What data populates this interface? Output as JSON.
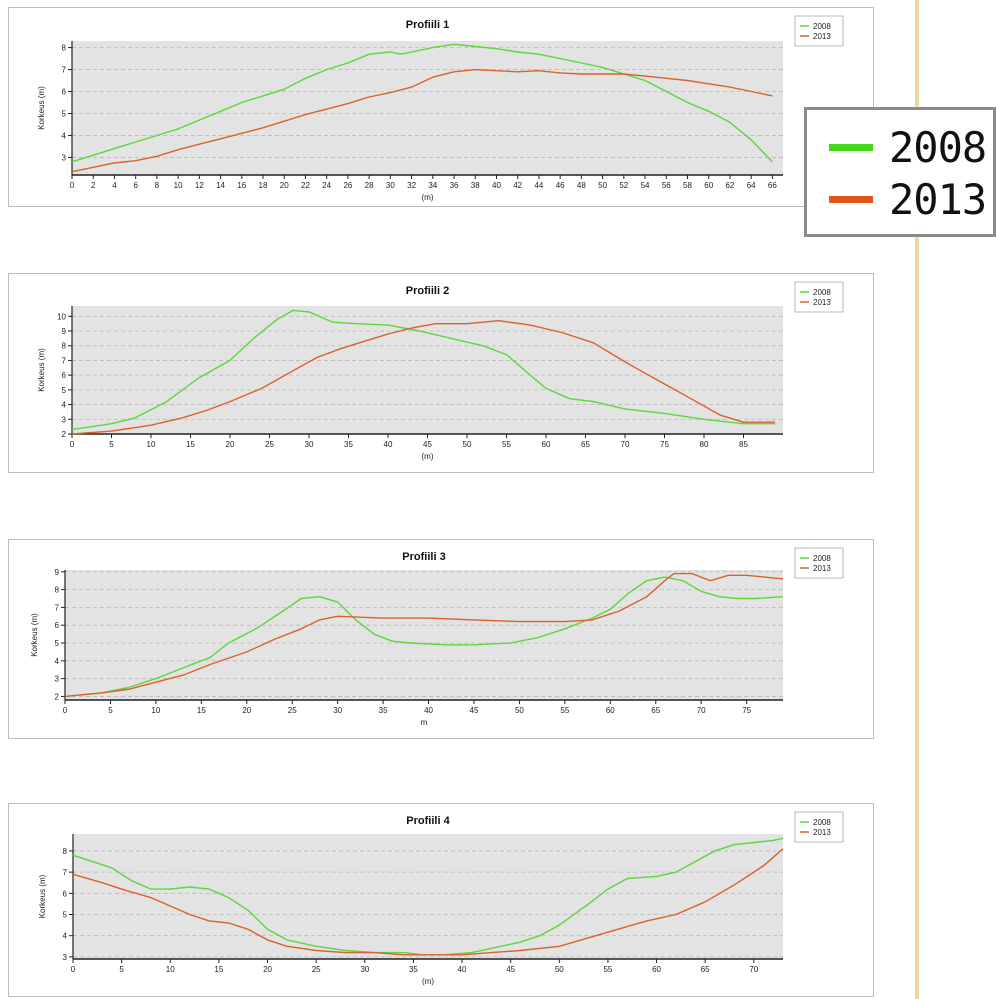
{
  "colors": {
    "s2008": "#5cd63b",
    "s2013": "#d9622b",
    "plot_bg": "#e3e3e3"
  },
  "legend": {
    "items": [
      {
        "label": "2008",
        "color": "#44d81c"
      },
      {
        "label": "2013",
        "color": "#e0561b"
      }
    ]
  },
  "chart_data": [
    {
      "type": "line",
      "title": "Profiili 1",
      "xlabel": "(m)",
      "ylabel": "Korkeus (m)",
      "xlim": [
        0,
        67
      ],
      "ylim": [
        2.2,
        8.3
      ],
      "xticks": [
        0,
        2,
        4,
        6,
        8,
        10,
        12,
        14,
        16,
        18,
        20,
        22,
        24,
        26,
        28,
        30,
        32,
        34,
        36,
        38,
        40,
        42,
        44,
        46,
        48,
        50,
        52,
        54,
        56,
        58,
        60,
        62,
        64,
        66
      ],
      "yticks": [
        3,
        4,
        5,
        6,
        7,
        8
      ],
      "legend_position": "top-right",
      "series": [
        {
          "name": "2008",
          "points": [
            [
              0,
              2.8
            ],
            [
              2,
              3.1
            ],
            [
              4,
              3.4
            ],
            [
              6,
              3.7
            ],
            [
              8,
              4.0
            ],
            [
              10,
              4.3
            ],
            [
              12,
              4.7
            ],
            [
              14,
              5.1
            ],
            [
              16,
              5.5
            ],
            [
              18,
              5.8
            ],
            [
              20,
              6.1
            ],
            [
              22,
              6.6
            ],
            [
              24,
              7.0
            ],
            [
              26,
              7.3
            ],
            [
              28,
              7.7
            ],
            [
              30,
              7.8
            ],
            [
              31,
              7.7
            ],
            [
              32,
              7.8
            ],
            [
              34,
              8.0
            ],
            [
              36,
              8.15
            ],
            [
              38,
              8.05
            ],
            [
              40,
              7.95
            ],
            [
              42,
              7.8
            ],
            [
              44,
              7.7
            ],
            [
              46,
              7.5
            ],
            [
              48,
              7.3
            ],
            [
              50,
              7.1
            ],
            [
              52,
              6.8
            ],
            [
              54,
              6.5
            ],
            [
              56,
              6.0
            ],
            [
              58,
              5.5
            ],
            [
              60,
              5.1
            ],
            [
              62,
              4.6
            ],
            [
              64,
              3.8
            ],
            [
              66,
              2.8
            ]
          ]
        },
        {
          "name": "2013",
          "points": [
            [
              0,
              2.35
            ],
            [
              2,
              2.55
            ],
            [
              4,
              2.75
            ],
            [
              6,
              2.85
            ],
            [
              8,
              3.05
            ],
            [
              10,
              3.35
            ],
            [
              12,
              3.6
            ],
            [
              14,
              3.85
            ],
            [
              16,
              4.1
            ],
            [
              18,
              4.35
            ],
            [
              20,
              4.65
            ],
            [
              22,
              4.95
            ],
            [
              24,
              5.2
            ],
            [
              26,
              5.45
            ],
            [
              28,
              5.75
            ],
            [
              30,
              5.95
            ],
            [
              32,
              6.2
            ],
            [
              34,
              6.65
            ],
            [
              36,
              6.9
            ],
            [
              38,
              7.0
            ],
            [
              40,
              6.95
            ],
            [
              42,
              6.9
            ],
            [
              44,
              6.95
            ],
            [
              46,
              6.85
            ],
            [
              48,
              6.8
            ],
            [
              50,
              6.8
            ],
            [
              52,
              6.8
            ],
            [
              54,
              6.7
            ],
            [
              56,
              6.6
            ],
            [
              58,
              6.5
            ],
            [
              60,
              6.35
            ],
            [
              62,
              6.2
            ],
            [
              64,
              6.0
            ],
            [
              66,
              5.8
            ]
          ]
        }
      ]
    },
    {
      "type": "line",
      "title": "Profiili 2",
      "xlabel": "(m)",
      "ylabel": "Korkeus (m)",
      "xlim": [
        0,
        90
      ],
      "ylim": [
        2,
        10.7
      ],
      "xticks": [
        0,
        5,
        10,
        15,
        20,
        25,
        30,
        35,
        40,
        45,
        50,
        55,
        60,
        65,
        70,
        75,
        80,
        85
      ],
      "yticks": [
        2,
        3,
        4,
        5,
        6,
        7,
        8,
        9,
        10
      ],
      "legend_position": "top-right",
      "series": [
        {
          "name": "2008",
          "points": [
            [
              0,
              2.3
            ],
            [
              5,
              2.7
            ],
            [
              8,
              3.1
            ],
            [
              12,
              4.2
            ],
            [
              16,
              5.8
            ],
            [
              20,
              7.0
            ],
            [
              23,
              8.5
            ],
            [
              26,
              9.8
            ],
            [
              28,
              10.4
            ],
            [
              30,
              10.3
            ],
            [
              33,
              9.6
            ],
            [
              36,
              9.5
            ],
            [
              40,
              9.4
            ],
            [
              44,
              9.0
            ],
            [
              48,
              8.5
            ],
            [
              52,
              8.0
            ],
            [
              55,
              7.4
            ],
            [
              58,
              6.0
            ],
            [
              60,
              5.1
            ],
            [
              63,
              4.4
            ],
            [
              66,
              4.2
            ],
            [
              70,
              3.7
            ],
            [
              75,
              3.4
            ],
            [
              80,
              3.0
            ],
            [
              85,
              2.7
            ],
            [
              89,
              2.7
            ]
          ]
        },
        {
          "name": "2013",
          "points": [
            [
              0,
              2.0
            ],
            [
              5,
              2.2
            ],
            [
              10,
              2.6
            ],
            [
              14,
              3.1
            ],
            [
              17,
              3.6
            ],
            [
              20,
              4.2
            ],
            [
              24,
              5.1
            ],
            [
              28,
              6.3
            ],
            [
              31,
              7.2
            ],
            [
              34,
              7.8
            ],
            [
              37,
              8.3
            ],
            [
              40,
              8.8
            ],
            [
              43,
              9.2
            ],
            [
              46,
              9.5
            ],
            [
              50,
              9.5
            ],
            [
              54,
              9.7
            ],
            [
              58,
              9.4
            ],
            [
              62,
              8.9
            ],
            [
              66,
              8.2
            ],
            [
              70,
              6.9
            ],
            [
              74,
              5.7
            ],
            [
              78,
              4.5
            ],
            [
              82,
              3.3
            ],
            [
              85,
              2.8
            ],
            [
              89,
              2.8
            ]
          ]
        }
      ]
    },
    {
      "type": "line",
      "title": "Profiili 3",
      "xlabel": "m",
      "ylabel": "Korkeus (m)",
      "xlim": [
        0,
        79
      ],
      "ylim": [
        1.8,
        9.1
      ],
      "xticks": [
        0,
        5,
        10,
        15,
        20,
        25,
        30,
        35,
        40,
        45,
        50,
        55,
        60,
        65,
        70,
        75
      ],
      "yticks": [
        2,
        3,
        4,
        5,
        6,
        7,
        8,
        9
      ],
      "legend_position": "top-right",
      "series": [
        {
          "name": "2008",
          "points": [
            [
              0,
              2.0
            ],
            [
              4,
              2.2
            ],
            [
              7,
              2.5
            ],
            [
              10,
              3.0
            ],
            [
              13,
              3.6
            ],
            [
              16,
              4.2
            ],
            [
              18,
              5.0
            ],
            [
              21,
              5.8
            ],
            [
              24,
              6.8
            ],
            [
              26,
              7.5
            ],
            [
              28,
              7.6
            ],
            [
              30,
              7.3
            ],
            [
              32,
              6.3
            ],
            [
              34,
              5.5
            ],
            [
              36,
              5.1
            ],
            [
              38,
              5.0
            ],
            [
              42,
              4.9
            ],
            [
              45,
              4.9
            ],
            [
              49,
              5.0
            ],
            [
              52,
              5.3
            ],
            [
              55,
              5.8
            ],
            [
              58,
              6.4
            ],
            [
              60,
              6.9
            ],
            [
              62,
              7.8
            ],
            [
              64,
              8.5
            ],
            [
              66,
              8.7
            ],
            [
              68,
              8.5
            ],
            [
              70,
              7.9
            ],
            [
              72,
              7.6
            ],
            [
              74,
              7.5
            ],
            [
              76,
              7.5
            ],
            [
              79,
              7.6
            ]
          ]
        },
        {
          "name": "2013",
          "points": [
            [
              0,
              2.0
            ],
            [
              4,
              2.2
            ],
            [
              7,
              2.4
            ],
            [
              10,
              2.8
            ],
            [
              13,
              3.2
            ],
            [
              16,
              3.8
            ],
            [
              20,
              4.5
            ],
            [
              23,
              5.2
            ],
            [
              26,
              5.8
            ],
            [
              28,
              6.3
            ],
            [
              30,
              6.5
            ],
            [
              35,
              6.4
            ],
            [
              40,
              6.4
            ],
            [
              45,
              6.3
            ],
            [
              50,
              6.2
            ],
            [
              55,
              6.2
            ],
            [
              58,
              6.3
            ],
            [
              61,
              6.8
            ],
            [
              64,
              7.6
            ],
            [
              66,
              8.5
            ],
            [
              67,
              8.9
            ],
            [
              69,
              8.9
            ],
            [
              71,
              8.5
            ],
            [
              73,
              8.8
            ],
            [
              75,
              8.8
            ],
            [
              79,
              8.6
            ]
          ]
        }
      ]
    },
    {
      "type": "line",
      "title": "Profiili 4",
      "xlabel": "(m)",
      "ylabel": "Korkeus (m)",
      "xlim": [
        0,
        73
      ],
      "ylim": [
        2.9,
        8.8
      ],
      "xticks": [
        0,
        5,
        10,
        15,
        20,
        25,
        30,
        35,
        40,
        45,
        50,
        55,
        60,
        65,
        70
      ],
      "yticks": [
        3,
        4,
        5,
        6,
        7,
        8
      ],
      "legend_position": "top-right",
      "series": [
        {
          "name": "2008",
          "points": [
            [
              0,
              7.8
            ],
            [
              4,
              7.2
            ],
            [
              6,
              6.6
            ],
            [
              8,
              6.2
            ],
            [
              10,
              6.2
            ],
            [
              12,
              6.3
            ],
            [
              14,
              6.2
            ],
            [
              16,
              5.8
            ],
            [
              18,
              5.2
            ],
            [
              20,
              4.3
            ],
            [
              22,
              3.8
            ],
            [
              25,
              3.5
            ],
            [
              28,
              3.3
            ],
            [
              31,
              3.2
            ],
            [
              34,
              3.2
            ],
            [
              36,
              3.1
            ],
            [
              38,
              3.1
            ],
            [
              41,
              3.2
            ],
            [
              43,
              3.4
            ],
            [
              46,
              3.7
            ],
            [
              48,
              4.0
            ],
            [
              50,
              4.5
            ],
            [
              53,
              5.5
            ],
            [
              55,
              6.2
            ],
            [
              57,
              6.7
            ],
            [
              60,
              6.8
            ],
            [
              62,
              7.0
            ],
            [
              64,
              7.5
            ],
            [
              66,
              8.0
            ],
            [
              68,
              8.3
            ],
            [
              70,
              8.4
            ],
            [
              72,
              8.5
            ],
            [
              73,
              8.6
            ]
          ]
        },
        {
          "name": "2013",
          "points": [
            [
              0,
              6.9
            ],
            [
              3,
              6.5
            ],
            [
              5,
              6.2
            ],
            [
              8,
              5.8
            ],
            [
              10,
              5.4
            ],
            [
              12,
              5.0
            ],
            [
              14,
              4.7
            ],
            [
              16,
              4.6
            ],
            [
              18,
              4.3
            ],
            [
              20,
              3.8
            ],
            [
              22,
              3.5
            ],
            [
              25,
              3.3
            ],
            [
              28,
              3.2
            ],
            [
              31,
              3.2
            ],
            [
              34,
              3.1
            ],
            [
              37,
              3.1
            ],
            [
              40,
              3.1
            ],
            [
              43,
              3.2
            ],
            [
              46,
              3.3
            ],
            [
              50,
              3.5
            ],
            [
              53,
              3.9
            ],
            [
              56,
              4.3
            ],
            [
              59,
              4.7
            ],
            [
              62,
              5.0
            ],
            [
              65,
              5.6
            ],
            [
              68,
              6.4
            ],
            [
              71,
              7.3
            ],
            [
              73,
              8.1
            ]
          ]
        }
      ]
    }
  ]
}
